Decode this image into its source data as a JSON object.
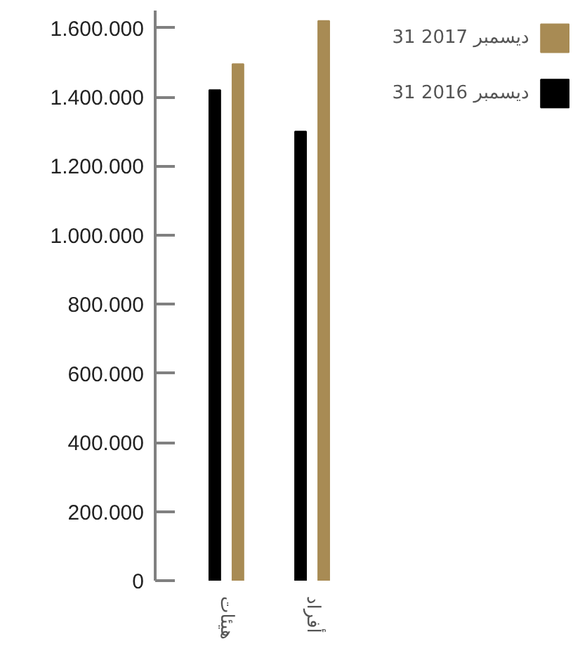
{
  "chart_data": {
    "type": "bar",
    "categories": [
      "هيئات",
      "أفراد"
    ],
    "series": [
      {
        "name": "31 ديسمبر 2016",
        "color": "#000000",
        "values": [
          1420000,
          1300000
        ]
      },
      {
        "name": "31 ديسمبر 2017",
        "color": "#a88b54",
        "values": [
          1495000,
          1620000
        ]
      }
    ],
    "ylim": [
      0,
      1650000
    ],
    "yticks": [
      0,
      {
        "value": 200000,
        "label": "200.000"
      },
      {
        "value": 400000,
        "label": "400.000"
      },
      {
        "value": 600000,
        "label": "600.000"
      },
      {
        "value": 800000,
        "label": "800.000"
      },
      {
        "value": 1000000,
        "label": "1.000.000"
      },
      {
        "value": 1200000,
        "label": "1.200.000"
      },
      {
        "value": 1400000,
        "label": "1.400.000"
      },
      {
        "value": 1600000,
        "label": "1.600.000"
      }
    ],
    "grid": false,
    "legend": "top right"
  }
}
